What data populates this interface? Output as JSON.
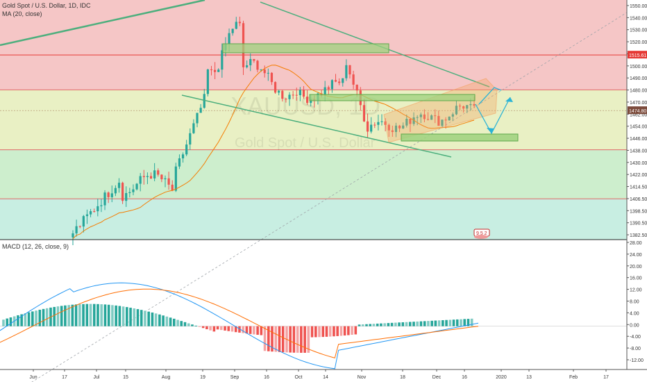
{
  "chart_data": {
    "type": "candlestick",
    "symbol_label": "Gold Spot / U.S. Dollar, 1D, IDC",
    "ma_label": "MA (20, close)",
    "macd_label": "MACD (12, 26, close, 9)",
    "watermark_symbol": "XAUUSD, 1D",
    "watermark_desc": "Gold Spot / U.S. Dollar",
    "last_price": "1474.80",
    "ref_price": "1515.61",
    "badge_text": "9 5 2",
    "price_axis": {
      "range": [
        1380,
        1556
      ],
      "ticks": [
        "1550.00",
        "1540.00",
        "1530.00",
        "1520.00",
        "1510.00",
        "1500.00",
        "1490.00",
        "1480.00",
        "1470.00",
        "1462.00",
        "1454.00",
        "1446.00",
        "1438.00",
        "1430.00",
        "1422.00",
        "1414.50",
        "1406.50",
        "1398.50",
        "1390.50",
        "1382.50"
      ]
    },
    "macd_axis": {
      "range": [
        -14,
        28
      ],
      "ticks": [
        "28.00",
        "24.00",
        "20.00",
        "16.00",
        "12.00",
        "8.00",
        "4.00",
        "0.00",
        "-4.00",
        "-8.00",
        "-12.00"
      ]
    },
    "time_axis": [
      "Jun",
      "17",
      "Jul",
      "15",
      "Aug",
      "19",
      "Sep",
      "16",
      "Oct",
      "14",
      "Nov",
      "18",
      "Dec",
      "16",
      "2020",
      "13",
      "Feb",
      "17"
    ],
    "zones": [
      {
        "name": "red zone",
        "from": 1490,
        "to": 1556,
        "color": "#f5c6c6"
      },
      {
        "name": "yellow zone",
        "from": 1446,
        "to": 1490,
        "color": "#e9f0c4"
      },
      {
        "name": "green zone",
        "from": 1410,
        "to": 1446,
        "color": "#cdeecd"
      },
      {
        "name": "teal zone",
        "from": 1380,
        "to": 1410,
        "color": "#c8eee2"
      }
    ],
    "colors": {
      "up": "#26a69a",
      "down": "#ef5350",
      "ma": "#f57c00",
      "macd": "#2196f3",
      "signal": "#ff6d00",
      "trend": "#4caf7d",
      "arrow": "#2ab3d6"
    }
  },
  "legend": {
    "title": "Gold Spot / U.S. Dollar, 1D, IDC",
    "ma": "MA (20, close)",
    "macd": "MACD (12, 26, close, 9)"
  }
}
